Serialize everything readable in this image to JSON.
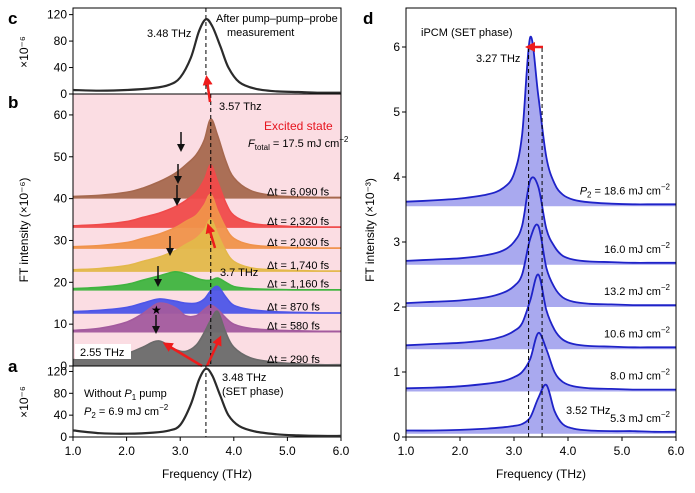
{
  "colors": {
    "pink_bg": "#fbdde3",
    "black_curve": "#2b2b2b",
    "blue_curve": "#1f23c8",
    "blue_fill": "#a9a9ef",
    "red_arrow": "#ee1c1c",
    "excited_label": "#e6141e"
  },
  "panel_labels": {
    "a": "a",
    "b": "b",
    "c": "c",
    "d": "d"
  },
  "panel_c": {
    "type": "line",
    "ylabel": "×10⁻⁶",
    "yticks": [
      0,
      40,
      80,
      120
    ],
    "ylim": [
      0,
      130
    ],
    "xlim": [
      1.0,
      6.0
    ],
    "peak_label": "3.48 THz",
    "annotation_line1": "After pump–pump–probe",
    "annotation_line2": "measurement",
    "x": [
      1.0,
      1.5,
      2.0,
      2.5,
      2.8,
      3.0,
      3.2,
      3.35,
      3.48,
      3.6,
      3.75,
      3.9,
      4.1,
      4.4,
      4.8,
      5.2,
      5.6,
      6.0
    ],
    "values": [
      6,
      5,
      6,
      9,
      14,
      25,
      55,
      95,
      113,
      102,
      72,
      40,
      18,
      8,
      4,
      3,
      2,
      2
    ]
  },
  "panel_b": {
    "type": "area",
    "ylabel": "FT intensity (×10⁻⁶)",
    "yticks": [
      0,
      10,
      20,
      30,
      40,
      50,
      60
    ],
    "ylim": [
      0,
      65
    ],
    "xlim": [
      1.0,
      6.0
    ],
    "excited_state_label": "Excited state",
    "fluence_label": "F_total = 17.5 mJ cm⁻²",
    "fluence_prefix": "F",
    "fluence_subscript": "total",
    "fluence_value": " = 17.5 mJ cm",
    "fluence_exp": "−2",
    "label_357": "3.57 Thz",
    "label_37": "3.7 THz",
    "label_255": "2.55 THz",
    "dashed_line_x": 3.57,
    "x": [
      1.0,
      1.5,
      2.0,
      2.3,
      2.6,
      2.9,
      3.1,
      3.3,
      3.45,
      3.57,
      3.7,
      3.85,
      4.0,
      4.3,
      4.7,
      5.2,
      5.6,
      6.0
    ],
    "series": [
      {
        "name": "Δt = 290 fs",
        "color": "#6a6a6a",
        "offset": 0,
        "values": [
          1.5,
          2,
          3,
          4.5,
          6,
          4,
          3.5,
          5,
          8,
          11,
          13,
          8,
          4.5,
          2,
          1,
          0.5,
          0.3,
          0.3
        ]
      },
      {
        "name": "Δt = 580 fs",
        "color": "#a35a9e",
        "offset": 8,
        "values": [
          0.5,
          1,
          2.5,
          4.5,
          7,
          6,
          4,
          4,
          5.5,
          6.5,
          5.5,
          3.5,
          2,
          1,
          0.6,
          0.4,
          0.3,
          0.3
        ]
      },
      {
        "name": "Δt = 870 fs",
        "color": "#4d55e8",
        "offset": 12.5,
        "values": [
          0.5,
          0.8,
          1.5,
          2.5,
          3.5,
          3,
          2.5,
          2.5,
          3.5,
          5.5,
          6.5,
          4,
          2,
          1,
          0.5,
          0.3,
          0.2,
          0.2
        ]
      },
      {
        "name": "Δt = 1,160 fs",
        "color": "#3fb43f",
        "offset": 18,
        "values": [
          0.5,
          0.8,
          1.5,
          2.5,
          3.5,
          4.5,
          4,
          3,
          2.5,
          2.5,
          3,
          2,
          1,
          0.5,
          0.3,
          0.2,
          0.2,
          0.2
        ]
      },
      {
        "name": "Δt = 1,740 fs",
        "color": "#e3b84a",
        "offset": 22.5,
        "values": [
          0.5,
          0.8,
          1.5,
          2.5,
          3.5,
          5,
          6.5,
          8,
          10,
          12.5,
          9,
          5,
          2.5,
          1,
          0.5,
          0.3,
          0.2,
          0.2
        ]
      },
      {
        "name": "Δt = 2,030 fs",
        "color": "#f0924a",
        "offset": 28,
        "values": [
          0.5,
          0.8,
          1.5,
          2.5,
          3.5,
          5,
          6.5,
          8,
          10.5,
          13,
          9,
          5,
          2.5,
          1,
          0.5,
          0.3,
          0.2,
          0.2
        ]
      },
      {
        "name": "Δt = 2,320 fs",
        "color": "#f04a4a",
        "offset": 33,
        "values": [
          0.5,
          0.8,
          1.5,
          2.5,
          3.5,
          5,
          6.5,
          8.5,
          11.5,
          15,
          11,
          6,
          3,
          1.2,
          0.6,
          0.3,
          0.2,
          0.2
        ]
      },
      {
        "name": "Δt = 6,090 fs",
        "color": "#a6684e",
        "offset": 40,
        "values": [
          0.5,
          0.8,
          1.5,
          2.5,
          4,
          6,
          8,
          10.5,
          14,
          19,
          15,
          9,
          5,
          2,
          0.8,
          0.4,
          0.3,
          0.3
        ]
      }
    ]
  },
  "panel_a": {
    "type": "line",
    "ylabel": "×10⁻⁶",
    "yticks": [
      0,
      40,
      80,
      120
    ],
    "ylim": [
      0,
      130
    ],
    "xlim": [
      1.0,
      6.0
    ],
    "xlabel": "Frequency (THz)",
    "xticks": [
      "1.0",
      "2.0",
      "3.0",
      "4.0",
      "5.0",
      "6.0"
    ],
    "peak_label_line1": "3.48 THz",
    "peak_label_line2": "(SET phase)",
    "note_line1_prefix": "Without ",
    "note_line1_sym": "P",
    "note_line1_sub": "1",
    "note_line1_suffix": " pump",
    "note_line2_sym": "P",
    "note_line2_sub": "2",
    "note_line2_value": " = 6.9 mJ cm",
    "note_line2_exp": "−2",
    "x": [
      1.0,
      1.5,
      2.0,
      2.5,
      2.8,
      3.0,
      3.2,
      3.35,
      3.48,
      3.6,
      3.75,
      3.9,
      4.1,
      4.4,
      4.8,
      5.2,
      5.6,
      6.0
    ],
    "values": [
      12,
      7,
      6,
      8,
      12,
      22,
      60,
      105,
      125,
      112,
      75,
      40,
      20,
      10,
      5,
      3,
      2,
      2
    ]
  },
  "panel_d": {
    "type": "area",
    "title": "iPCM (SET phase)",
    "ylabel": "FT intensity (×10⁻³)",
    "xlabel": "Frequency (THz)",
    "yticks": [
      0,
      1,
      2,
      3,
      4,
      5,
      6
    ],
    "ylim": [
      0,
      6.6
    ],
    "xlim": [
      1.0,
      6.0
    ],
    "xticks": [
      "1.0",
      "2.0",
      "3.0",
      "4.0",
      "5.0",
      "6.0"
    ],
    "label_327": "3.27 THz",
    "label_352": "3.52 THz",
    "dashed_lines_x": [
      3.27,
      3.52
    ],
    "p2_sym": "P",
    "p2_sub": "2",
    "x": [
      1.0,
      1.5,
      2.0,
      2.5,
      2.8,
      3.0,
      3.15,
      3.3,
      3.45,
      3.6,
      3.75,
      3.9,
      4.1,
      4.4,
      4.8,
      5.2,
      5.6,
      6.0
    ],
    "series": [
      {
        "name": "5.3 mJ cm⁻²",
        "label_prefix": "",
        "value": "5.3 mJ cm",
        "exp": "−2",
        "offset": 0.05,
        "values": [
          0.05,
          0.05,
          0.06,
          0.08,
          0.1,
          0.12,
          0.15,
          0.25,
          0.55,
          0.75,
          0.35,
          0.15,
          0.08,
          0.05,
          0.04,
          0.04,
          0.03,
          0.03
        ]
      },
      {
        "name": "8.0 mJ cm⁻²",
        "label_prefix": "",
        "value": "8.0 mJ cm",
        "exp": "−2",
        "offset": 0.7,
        "values": [
          0.05,
          0.06,
          0.08,
          0.12,
          0.16,
          0.22,
          0.3,
          0.5,
          0.9,
          0.65,
          0.3,
          0.15,
          0.08,
          0.05,
          0.04,
          0.03,
          0.03,
          0.03
        ]
      },
      {
        "name": "10.6 mJ cm⁻²",
        "label_prefix": "",
        "value": "10.6 mJ cm",
        "exp": "−2",
        "offset": 1.35,
        "values": [
          0.06,
          0.08,
          0.1,
          0.14,
          0.2,
          0.28,
          0.4,
          0.75,
          1.15,
          0.6,
          0.3,
          0.15,
          0.08,
          0.05,
          0.04,
          0.03,
          0.03,
          0.03
        ]
      },
      {
        "name": "13.2 mJ cm⁻²",
        "label_prefix": "",
        "value": "13.2 mJ cm",
        "exp": "−2",
        "offset": 2.0,
        "values": [
          0.06,
          0.08,
          0.1,
          0.15,
          0.22,
          0.32,
          0.5,
          1.05,
          1.25,
          0.6,
          0.3,
          0.15,
          0.08,
          0.05,
          0.04,
          0.03,
          0.03,
          0.03
        ]
      },
      {
        "name": "16.0 mJ cm⁻²",
        "label_prefix": "",
        "value": "16.0 mJ cm",
        "exp": "−2",
        "offset": 2.65,
        "values": [
          0.06,
          0.08,
          0.1,
          0.15,
          0.22,
          0.35,
          0.6,
          1.3,
          1.2,
          0.55,
          0.28,
          0.14,
          0.08,
          0.05,
          0.04,
          0.03,
          0.03,
          0.03
        ]
      },
      {
        "name": "P2 = 18.6 mJ cm⁻²",
        "label_prefix": "P2",
        "value": " = 18.6 mJ cm",
        "exp": "−2",
        "offset": 3.55,
        "values": [
          0.07,
          0.09,
          0.12,
          0.18,
          0.28,
          0.5,
          1.1,
          2.6,
          1.7,
          0.75,
          0.35,
          0.18,
          0.1,
          0.06,
          0.04,
          0.03,
          0.03,
          0.03
        ]
      }
    ]
  }
}
